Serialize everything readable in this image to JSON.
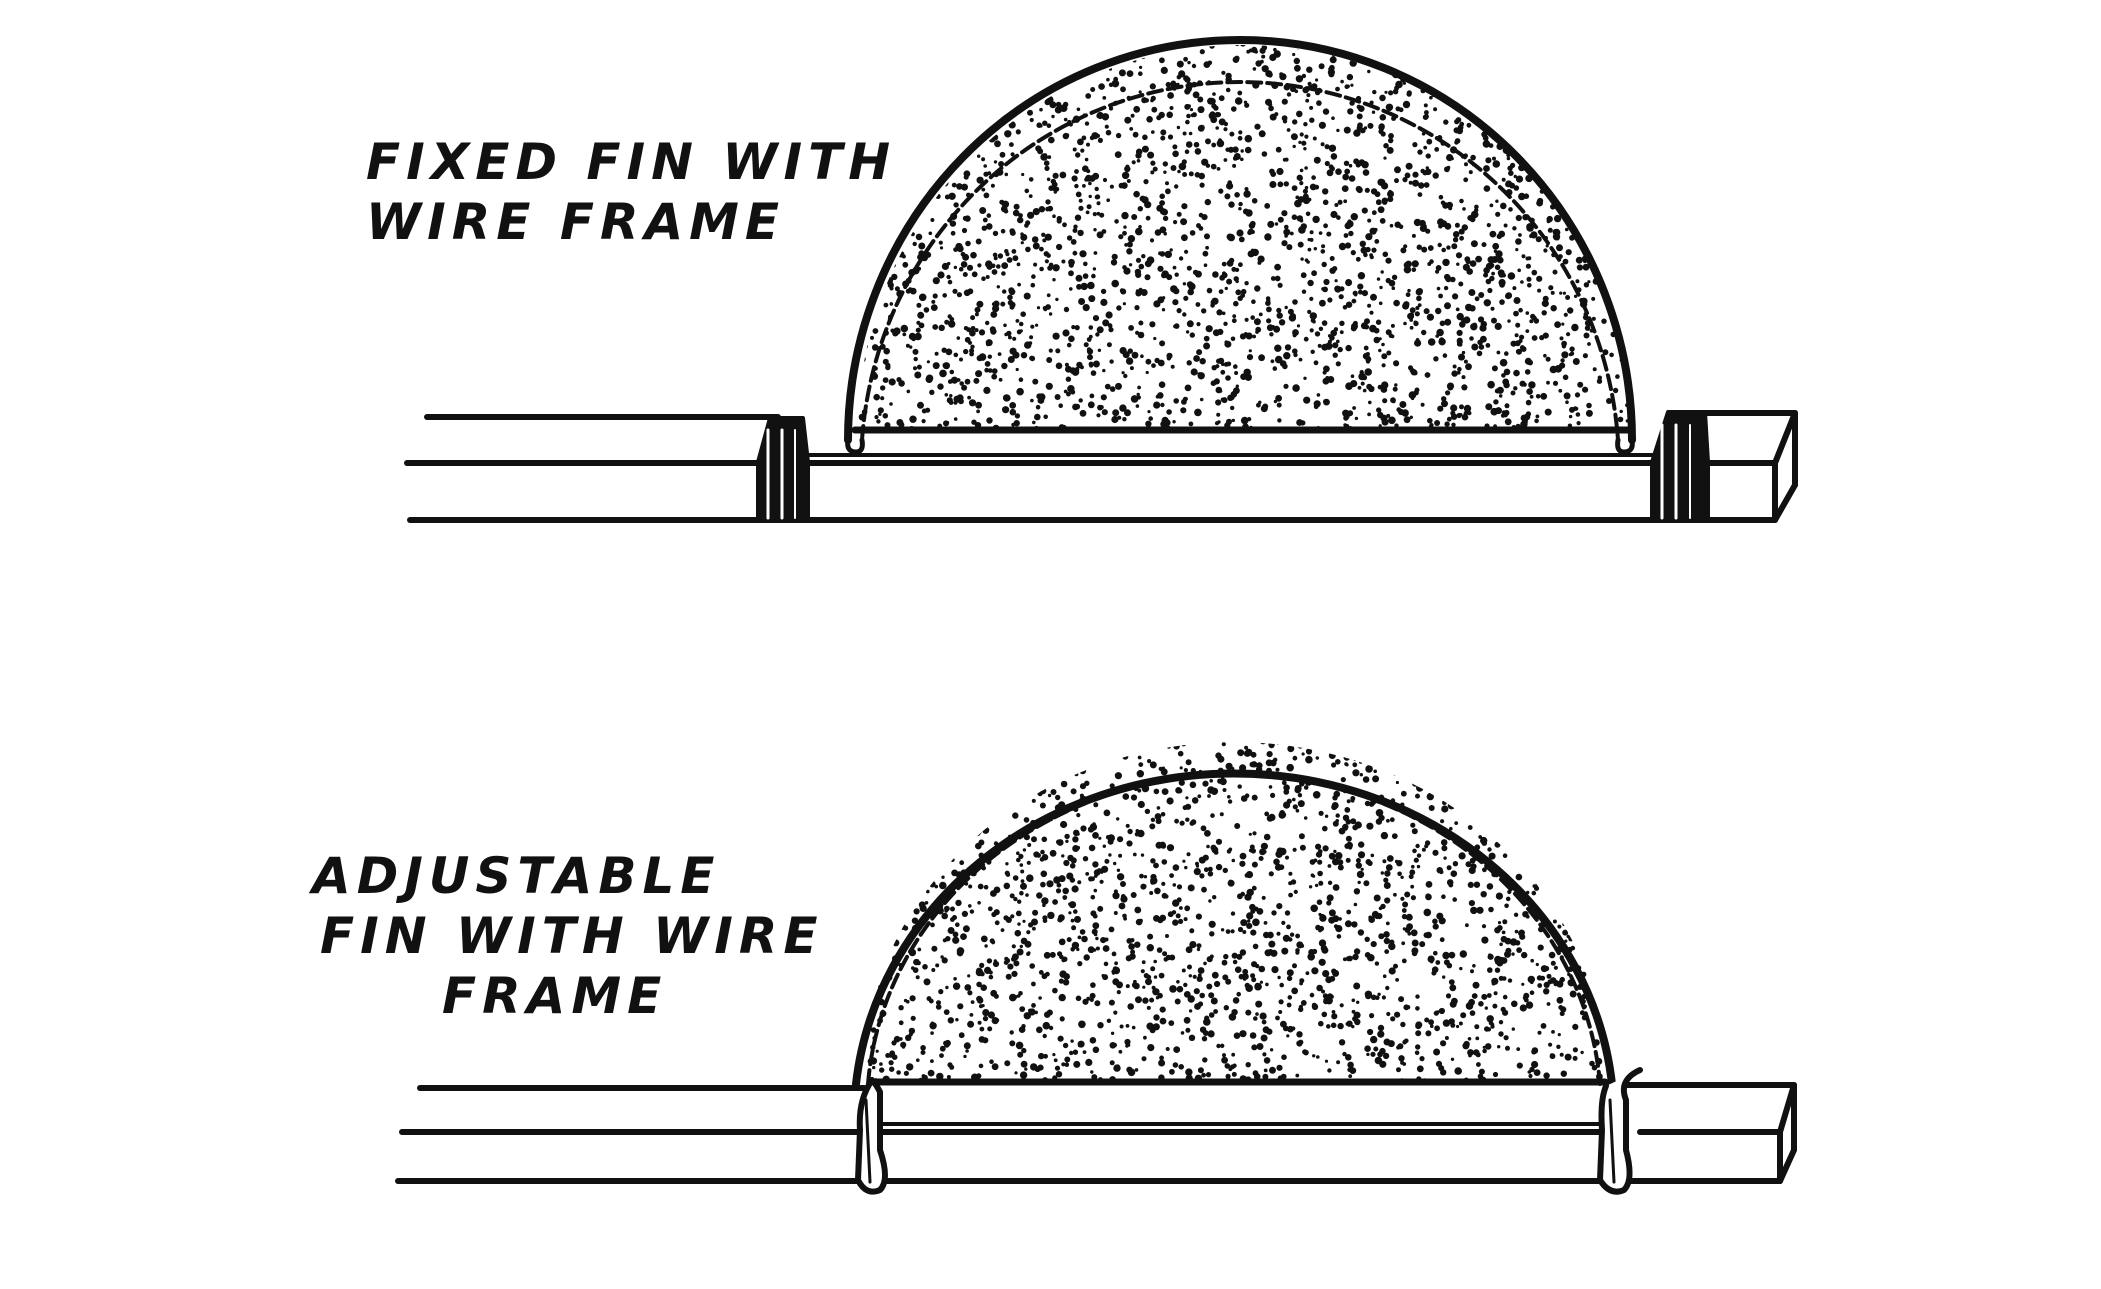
{
  "colors": {
    "ink": "#111111",
    "paper": "#ffffff"
  },
  "figures": [
    {
      "id": "fixed",
      "label_lines": [
        "FIXED  FIN WITH",
        "WIRE  FRAME"
      ]
    },
    {
      "id": "adjustable",
      "label_lines": [
        "ADJUSTABLE",
        "FIN  WITH WIRE",
        "FRAME"
      ]
    }
  ]
}
